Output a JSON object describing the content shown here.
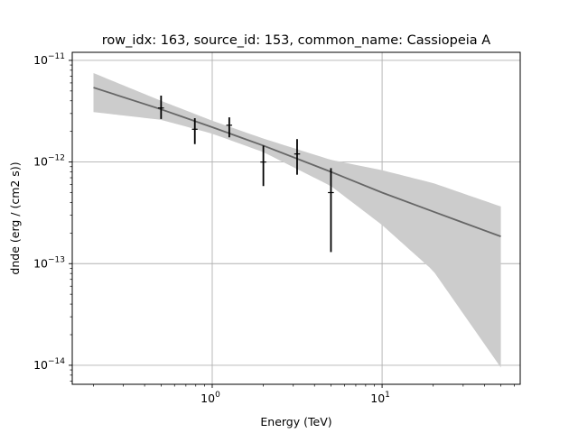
{
  "chart_data": {
    "type": "scatter",
    "title": "row_idx: 163, source_id: 153, common_name: Cassiopeia A",
    "xlabel": "Energy (TeV)",
    "ylabel": "dnde (erg / (cm2 s))",
    "xscale": "log",
    "yscale": "log",
    "xlim": [
      0.15,
      65
    ],
    "ylim": [
      6.5e-15,
      1.2e-11
    ],
    "grid": true,
    "x_ticks": [
      {
        "value": 1,
        "base": "10",
        "exp": "0"
      },
      {
        "value": 10,
        "base": "10",
        "exp": "1"
      }
    ],
    "y_ticks": [
      {
        "value": 1e-14,
        "base": "10",
        "exp": "−14"
      },
      {
        "value": 1e-13,
        "base": "10",
        "exp": "−13"
      },
      {
        "value": 1e-12,
        "base": "10",
        "exp": "−12"
      },
      {
        "value": 1e-11,
        "base": "10",
        "exp": "−11"
      }
    ],
    "points": [
      {
        "x": 0.5,
        "y": 3.4e-12,
        "yerr_low": 2.65e-12,
        "yerr_high": 4.5e-12,
        "xerr": [
          0.48,
          0.52
        ]
      },
      {
        "x": 0.79,
        "y": 2.1e-12,
        "yerr_low": 1.5e-12,
        "yerr_high": 2.7e-12,
        "xerr": [
          0.76,
          0.82
        ]
      },
      {
        "x": 1.26,
        "y": 2.3e-12,
        "yerr_low": 1.75e-12,
        "yerr_high": 2.75e-12,
        "xerr": [
          1.21,
          1.31
        ]
      },
      {
        "x": 2.0,
        "y": 1e-12,
        "yerr_low": 5.8e-13,
        "yerr_high": 1.45e-12,
        "xerr": [
          1.92,
          2.08
        ]
      },
      {
        "x": 3.16,
        "y": 1.2e-12,
        "yerr_low": 7.5e-13,
        "yerr_high": 1.68e-12,
        "xerr": [
          3.04,
          3.29
        ]
      },
      {
        "x": 5.0,
        "y": 5e-13,
        "yerr_low": 1.3e-13,
        "yerr_high": 8.7e-13,
        "xerr": [
          4.8,
          5.2
        ]
      }
    ],
    "model": {
      "x": [
        0.2,
        0.5,
        1,
        2,
        5,
        10,
        20,
        50
      ],
      "y": [
        5.4e-12,
        3.3e-12,
        2.2e-12,
        1.45e-12,
        8e-13,
        5e-13,
        3.25e-13,
        1.85e-13
      ],
      "band_low": [
        3.1e-12,
        2.6e-12,
        1.9e-12,
        1.25e-12,
        5.8e-13,
        2.4e-13,
        8.5e-14,
        9.5e-15
      ],
      "band_high": [
        7.5e-12,
        4e-12,
        2.55e-12,
        1.7e-12,
        1.05e-12,
        8.3e-13,
        6.2e-13,
        3.65e-13
      ]
    },
    "colors": {
      "band": "#cccccc",
      "model_line": "#666666",
      "points": "#000000",
      "grid": "#b0b0b0"
    }
  }
}
